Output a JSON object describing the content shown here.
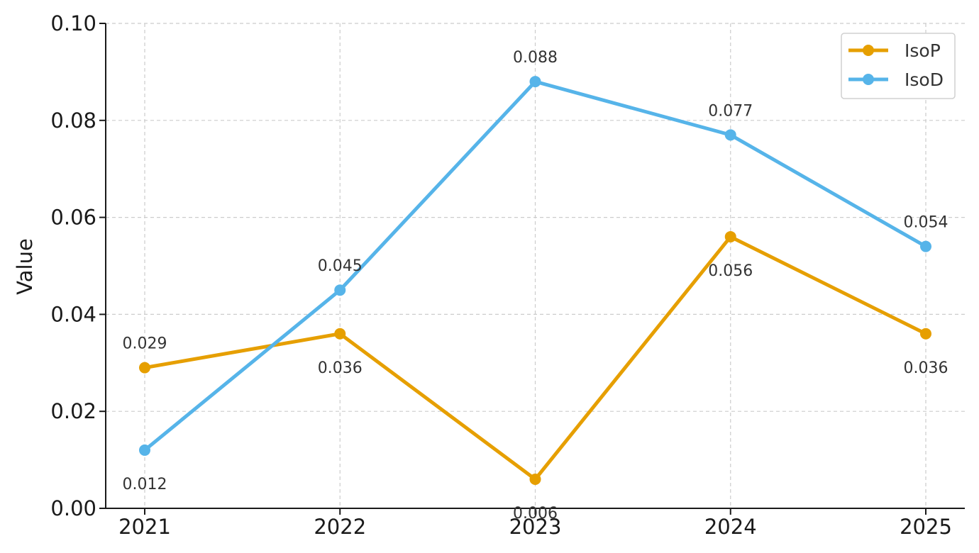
{
  "chart_data": {
    "type": "line",
    "title": "",
    "xlabel": "",
    "ylabel": "Value",
    "x": [
      "2021",
      "2022",
      "2023",
      "2024",
      "2025"
    ],
    "ylim": [
      0,
      0.1
    ],
    "yticks": [
      "0.00",
      "0.02",
      "0.04",
      "0.06",
      "0.08",
      "0.10"
    ],
    "grid": true,
    "legend_position": "top-right",
    "series": [
      {
        "name": "IsoP",
        "color": "#E69F00",
        "values": [
          0.029,
          0.036,
          0.006,
          0.056,
          0.036
        ],
        "labels": [
          "0.029",
          "0.036",
          "0.006",
          "0.056",
          "0.036"
        ]
      },
      {
        "name": "IsoD",
        "color": "#56B4E9",
        "values": [
          0.012,
          0.045,
          0.088,
          0.077,
          0.054
        ],
        "labels": [
          "0.012",
          "0.045",
          "0.088",
          "0.077",
          "0.054"
        ]
      }
    ]
  }
}
